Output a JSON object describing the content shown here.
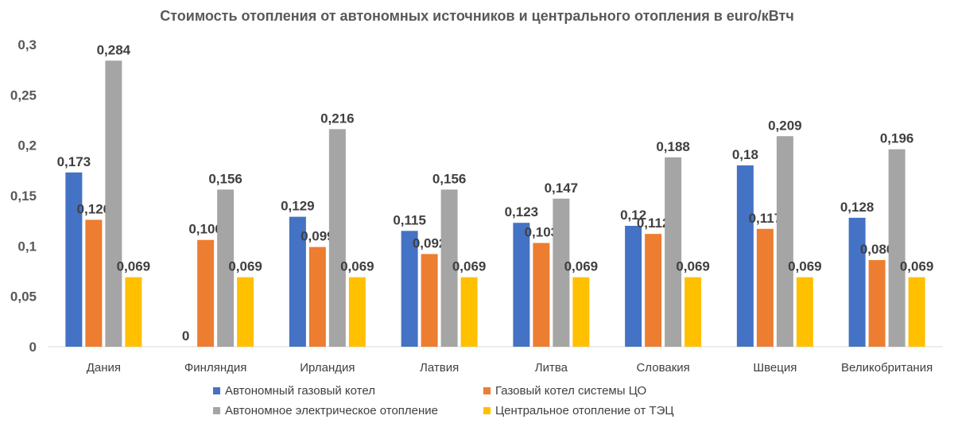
{
  "chart_data": {
    "type": "bar",
    "title": "Стоимость отопления от автономных источников и центрального отопления  в euro/кВтч",
    "categories": [
      "Дания",
      "Финляндия",
      "Ирландия",
      "Латвия",
      "Литва",
      "Словакия",
      "Швеция",
      "Великобритания"
    ],
    "series": [
      {
        "name": "Автономный газовый котел",
        "color": "#4472C4",
        "values": [
          0.173,
          0,
          0.129,
          0.115,
          0.123,
          0.12,
          0.18,
          0.128
        ],
        "labels": [
          "0,173",
          "0",
          "0,129",
          "0,115",
          "0,123",
          "0,12",
          "0,18",
          "0,128"
        ]
      },
      {
        "name": "Газовый котел системы ЦО",
        "color": "#ED7D31",
        "values": [
          0.126,
          0.106,
          0.099,
          0.092,
          0.103,
          0.112,
          0.117,
          0.086
        ],
        "labels": [
          "0,126",
          "0,106",
          "0,099",
          "0,092",
          "0,103",
          "0,112",
          "0,117",
          "0,086"
        ]
      },
      {
        "name": "Автономное электрическое отопление",
        "color": "#A5A5A5",
        "values": [
          0.284,
          0.156,
          0.216,
          0.156,
          0.147,
          0.188,
          0.209,
          0.196
        ],
        "labels": [
          "0,284",
          "0,156",
          "0,216",
          "0,156",
          "0,147",
          "0,188",
          "0,209",
          "0,196"
        ]
      },
      {
        "name": "Центральное отопление от ТЭЦ",
        "color": "#FFC000",
        "values": [
          0.069,
          0.069,
          0.069,
          0.069,
          0.069,
          0.069,
          0.069,
          0.069
        ],
        "labels": [
          "0,069",
          "0,069",
          "0,069",
          "0,069",
          "0,069",
          "0,069",
          "0,069",
          "0,069"
        ]
      }
    ],
    "yticks": [
      0,
      0.05,
      0.1,
      0.15,
      0.2,
      0.25,
      0.3
    ],
    "ytick_labels": [
      "0",
      "0,05",
      "0,1",
      "0,15",
      "0,2",
      "0,25",
      "0,3"
    ],
    "ylim": [
      0,
      0.3
    ],
    "grid": false,
    "legend_position": "bottom"
  }
}
